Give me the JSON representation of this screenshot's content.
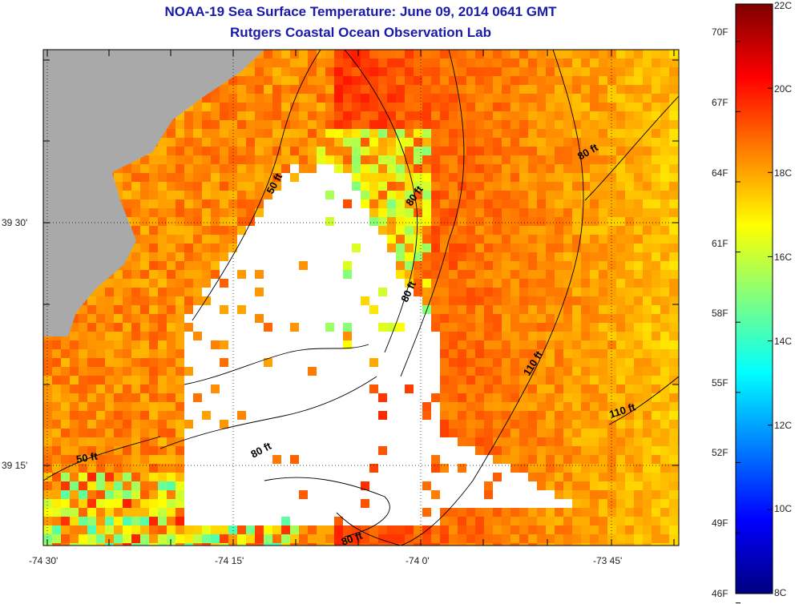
{
  "title": "NOAA-19 Sea Surface Temperature:  June 09, 2014 0641 GMT",
  "subtitle": "Rutgers Coastal Ocean Observation Lab",
  "axes": {
    "x_ticks": [
      "-74 30'",
      "-74 15'",
      "-74 0'",
      "-73 45'"
    ],
    "y_ticks": [
      "39 30'",
      "39 15'"
    ]
  },
  "contour_labels": [
    "50 ft",
    "80 ft",
    "80 ft",
    "80 ft",
    "80 ft",
    "80 ft",
    "110 ft",
    "110 ft",
    "50 ft"
  ],
  "colorbar": {
    "fahrenheit": [
      "70F",
      "67F",
      "64F",
      "61F",
      "58F",
      "55F",
      "52F",
      "49F",
      "46F"
    ],
    "celsius": [
      "22C",
      "20C",
      "18C",
      "16C",
      "14C",
      "12C",
      "10C",
      "8C"
    ],
    "range_c": [
      8,
      22
    ]
  },
  "colors": {
    "title": "#1a1aa8",
    "land": "#a9a9a9",
    "no_data": "#ffffff"
  }
}
